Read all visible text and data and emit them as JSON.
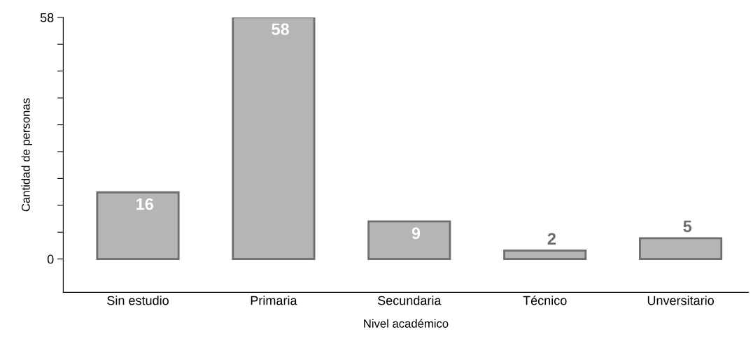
{
  "chart_data": {
    "type": "bar",
    "xlabel": "Nivel académico",
    "ylabel": "Cantidad de personas",
    "categories": [
      "Sin estudio",
      "Primaria",
      "Secundaria",
      "Técnico",
      "Unversitario"
    ],
    "values": [
      16,
      58,
      9,
      2,
      5
    ],
    "color": "#b5b5b5",
    "ylim": [
      -8,
      58
    ],
    "yticks": [
      0,
      {
        "value": 6.44,
        "label": null
      },
      {
        "value": 12.89,
        "label": null
      },
      {
        "value": 19.33,
        "label": null
      },
      {
        "value": 25.78,
        "label": null
      },
      {
        "value": 32.22,
        "label": null
      },
      {
        "value": 38.67,
        "label": null
      },
      {
        "value": 45.11,
        "label": null
      },
      {
        "value": 51.56,
        "label": null
      },
      58
    ],
    "data_labels": true,
    "grid": false,
    "legend": false
  }
}
